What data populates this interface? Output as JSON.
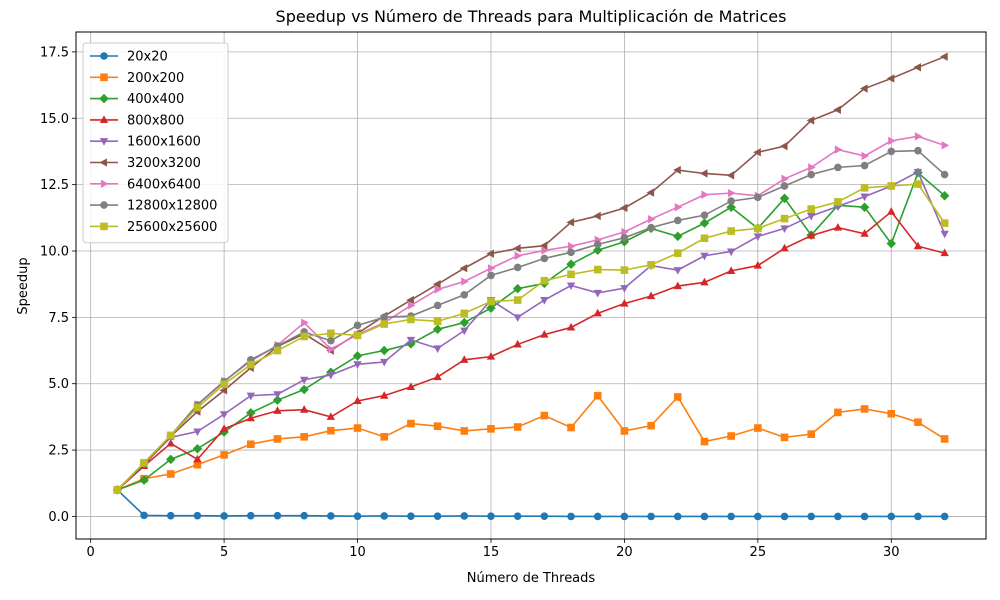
{
  "chart_data": {
    "type": "line",
    "title": "Speedup vs Número de Threads para Multiplicación de Matrices",
    "xlabel": "Número de Threads",
    "ylabel": "Speedup",
    "xlim": [
      -0.55,
      33.55
    ],
    "ylim": [
      -0.85,
      18.25
    ],
    "xticks": [
      0,
      5,
      10,
      15,
      20,
      25,
      30
    ],
    "xtick_labels": [
      "0",
      "5",
      "10",
      "15",
      "20",
      "25",
      "30"
    ],
    "yticks": [
      0,
      2.5,
      5,
      7.5,
      10,
      12.5,
      15,
      17.5
    ],
    "ytick_labels": [
      "0.0",
      "2.5",
      "5.0",
      "7.5",
      "10.0",
      "12.5",
      "15.0",
      "17.5"
    ],
    "grid": true,
    "legend_position": "upper-left",
    "x": [
      1,
      2,
      3,
      4,
      5,
      6,
      7,
      8,
      9,
      10,
      11,
      12,
      13,
      14,
      15,
      16,
      17,
      18,
      19,
      20,
      21,
      22,
      23,
      24,
      25,
      26,
      27,
      28,
      29,
      30,
      31,
      32
    ],
    "series": [
      {
        "name": "20x20",
        "color": "#1f77b4",
        "marker": "circle",
        "values": [
          1.0,
          0.04,
          0.03,
          0.03,
          0.02,
          0.03,
          0.03,
          0.03,
          0.02,
          0.01,
          0.02,
          0.01,
          0.01,
          0.02,
          0.01,
          0.01,
          0.01,
          0.0,
          0.0,
          0.0,
          0.0,
          0.0,
          0.0,
          0.0,
          0.0,
          0.0,
          0.0,
          0.0,
          0.0,
          0.0,
          0.0,
          0.0
        ]
      },
      {
        "name": "200x200",
        "color": "#ff7f0e",
        "marker": "square",
        "values": [
          1.0,
          1.42,
          1.6,
          1.95,
          2.32,
          2.72,
          2.92,
          3.0,
          3.23,
          3.33,
          3.0,
          3.5,
          3.4,
          3.22,
          3.3,
          3.37,
          3.8,
          3.35,
          4.55,
          3.22,
          3.42,
          4.5,
          2.82,
          3.03,
          3.33,
          2.98,
          3.1,
          3.92,
          4.05,
          3.87,
          3.55,
          2.92
        ]
      },
      {
        "name": "400x400",
        "color": "#2ca02c",
        "marker": "diamond",
        "values": [
          1.0,
          1.37,
          2.15,
          2.55,
          3.18,
          3.9,
          4.38,
          4.78,
          5.43,
          6.05,
          6.25,
          6.5,
          7.05,
          7.3,
          7.85,
          8.58,
          8.78,
          9.5,
          10.03,
          10.35,
          10.85,
          10.55,
          11.05,
          11.65,
          10.85,
          11.98,
          10.6,
          11.72,
          11.65,
          10.28,
          12.95,
          12.08
        ]
      },
      {
        "name": "800x800",
        "color": "#d62728",
        "marker": "triangle-up",
        "values": [
          1.0,
          1.9,
          2.75,
          2.15,
          3.3,
          3.7,
          3.98,
          4.02,
          3.75,
          4.35,
          4.55,
          4.88,
          5.25,
          5.9,
          6.02,
          6.48,
          6.85,
          7.12,
          7.65,
          8.02,
          8.3,
          8.68,
          8.82,
          9.25,
          9.45,
          10.1,
          10.58,
          10.88,
          10.65,
          11.48,
          10.18,
          9.92
        ]
      },
      {
        "name": "1600x1600",
        "color": "#9467bd",
        "marker": "triangle-down",
        "values": [
          1.0,
          1.98,
          2.98,
          3.2,
          3.85,
          4.55,
          4.6,
          5.15,
          5.33,
          5.73,
          5.82,
          6.65,
          6.33,
          7.0,
          8.15,
          7.5,
          8.15,
          8.7,
          8.42,
          8.6,
          9.45,
          9.28,
          9.82,
          9.98,
          10.55,
          10.85,
          11.32,
          11.68,
          12.05,
          12.45,
          12.98,
          10.65
        ]
      },
      {
        "name": "3200x3200",
        "color": "#8c564b",
        "marker": "triangle-left",
        "values": [
          1.0,
          1.95,
          3.02,
          3.95,
          4.75,
          5.6,
          6.4,
          6.88,
          6.25,
          6.9,
          7.55,
          8.15,
          8.75,
          9.35,
          9.9,
          10.1,
          10.2,
          11.08,
          11.32,
          11.62,
          12.2,
          13.05,
          12.92,
          12.85,
          13.72,
          13.95,
          14.92,
          15.32,
          16.12,
          16.5,
          16.92,
          17.32
        ]
      },
      {
        "name": "6400x6400",
        "color": "#e377c2",
        "marker": "triangle-right",
        "values": [
          1.0,
          2.02,
          3.05,
          4.22,
          5.1,
          5.85,
          6.45,
          7.3,
          6.3,
          6.85,
          7.3,
          7.95,
          8.55,
          8.85,
          9.35,
          9.82,
          10.02,
          10.18,
          10.42,
          10.72,
          11.2,
          11.65,
          12.12,
          12.18,
          12.08,
          12.72,
          13.15,
          13.82,
          13.58,
          14.15,
          14.32,
          13.98
        ]
      },
      {
        "name": "12800x12800",
        "color": "#7f7f7f",
        "marker": "circle",
        "values": [
          1.0,
          2.0,
          3.05,
          4.2,
          5.08,
          5.9,
          6.42,
          6.95,
          6.62,
          7.2,
          7.5,
          7.55,
          7.95,
          8.35,
          9.08,
          9.38,
          9.72,
          9.95,
          10.25,
          10.5,
          10.88,
          11.15,
          11.35,
          11.88,
          12.02,
          12.45,
          12.88,
          13.15,
          13.22,
          13.75,
          13.78,
          12.88
        ]
      },
      {
        "name": "25600x25600",
        "color": "#bcbd22",
        "marker": "square",
        "values": [
          1.0,
          2.02,
          3.05,
          4.1,
          4.98,
          5.72,
          6.25,
          6.78,
          6.9,
          6.82,
          7.25,
          7.42,
          7.35,
          7.65,
          8.1,
          8.15,
          8.88,
          9.12,
          9.3,
          9.28,
          9.48,
          9.92,
          10.48,
          10.75,
          10.85,
          11.22,
          11.58,
          11.85,
          12.38,
          12.45,
          12.52,
          11.05
        ]
      }
    ]
  }
}
